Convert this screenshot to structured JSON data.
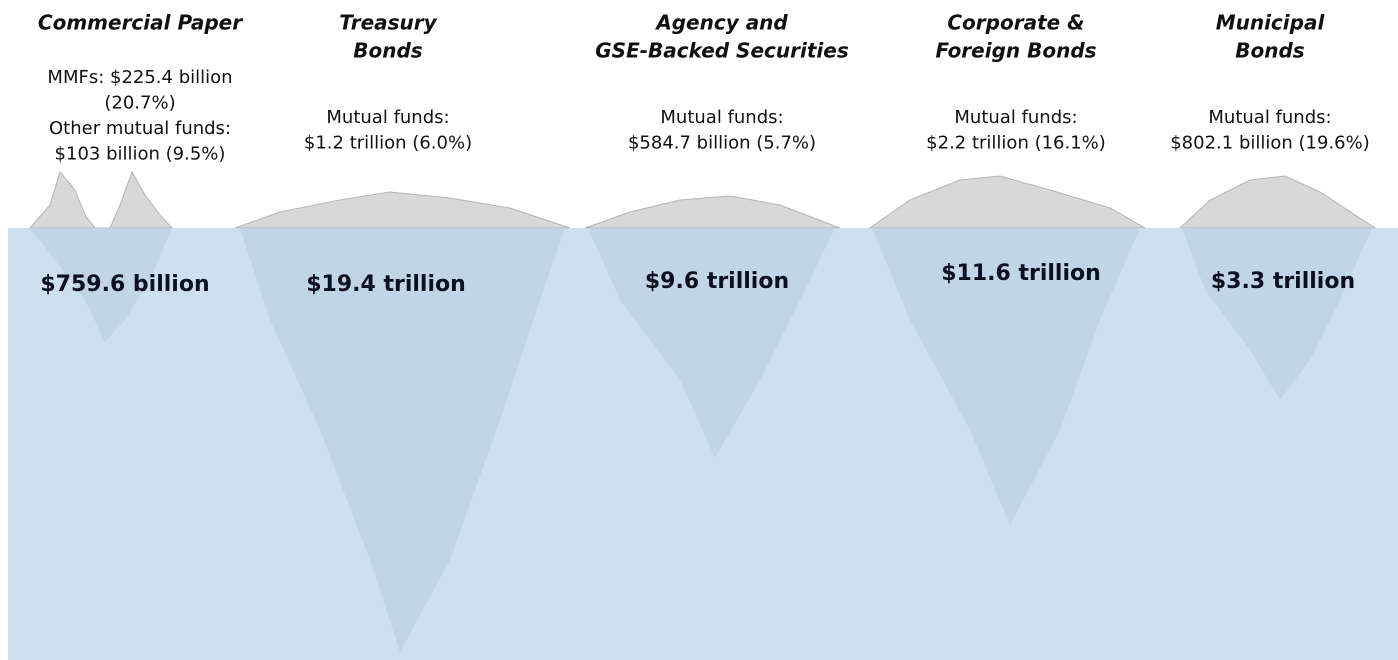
{
  "columns": [
    {
      "title": [
        "Commercial Paper"
      ],
      "notes": [
        "MMFs: $225.4 billion",
        "(20.7%)",
        "Other mutual funds:",
        "$103 billion (9.5%)"
      ],
      "total": "$759.6 billion"
    },
    {
      "title": [
        "Treasury",
        "Bonds"
      ],
      "notes": [
        "Mutual funds:",
        "$1.2 trillion (6.0%)"
      ],
      "total": "$19.4 trillion"
    },
    {
      "title": [
        "Agency and",
        "GSE-Backed Securities"
      ],
      "notes": [
        "Mutual funds:",
        "$584.7 billion (5.7%)"
      ],
      "total": "$9.6 trillion"
    },
    {
      "title": [
        "Corporate &",
        "Foreign Bonds"
      ],
      "notes": [
        "Mutual funds:",
        "$2.2 trillion (16.1%)"
      ],
      "total": "$11.6 trillion"
    },
    {
      "title": [
        "Municipal",
        "Bonds"
      ],
      "notes": [
        "Mutual funds:",
        "$802.1 billion (19.6%)"
      ],
      "total": "$3.3 trillion"
    }
  ]
}
